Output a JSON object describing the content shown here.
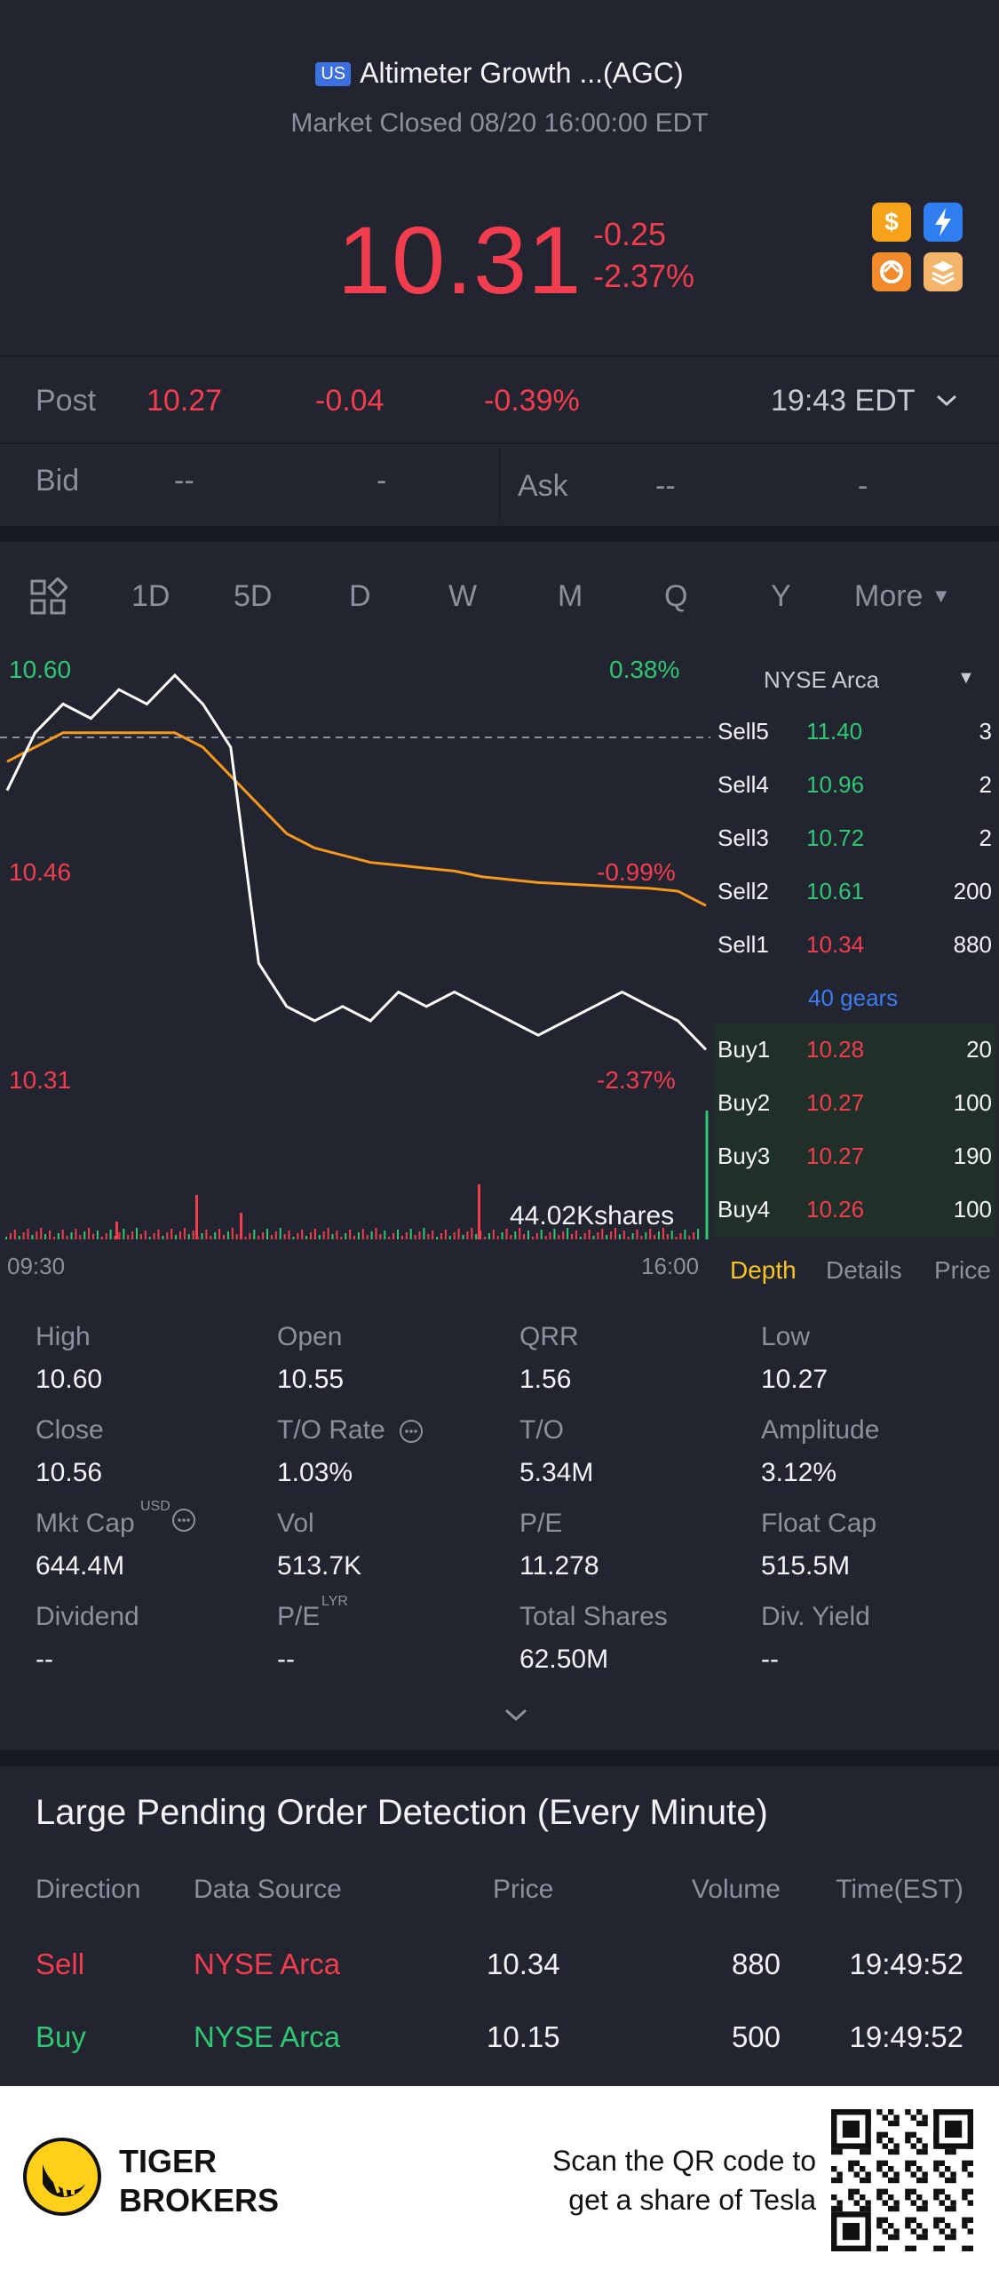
{
  "header": {
    "market_badge": "US",
    "title": "Altimeter Growth ...(AGC)",
    "status": "Market Closed 08/20 16:00:00 EDT",
    "price": "10.31",
    "change": "-0.25",
    "change_pct": "-2.37%",
    "icons": [
      "dollar-icon",
      "lightning-icon",
      "swap-icon",
      "layers-icon"
    ]
  },
  "post": {
    "label": "Post",
    "price": "10.27",
    "change": "-0.04",
    "change_pct": "-0.39%",
    "time": "19:43 EDT"
  },
  "bidask": {
    "bid_label": "Bid",
    "bid_price": "--",
    "bid_size": "-",
    "ask_label": "Ask",
    "ask_price": "--",
    "ask_size": "-"
  },
  "periods": [
    "1D",
    "5D",
    "D",
    "W",
    "M",
    "Q",
    "Y",
    "More"
  ],
  "active_period": "1D",
  "chart": {
    "high_label": "10.60",
    "high_pct": "0.38%",
    "mid_label": "10.46",
    "mid_pct": "-0.99%",
    "low_label": "10.31",
    "low_pct": "-2.37%",
    "volume_label": "44.02Kshares",
    "time_start": "09:30",
    "time_end": "16:00"
  },
  "chart_data": {
    "type": "line",
    "x_range": [
      "09:30",
      "16:00"
    ],
    "ylim": [
      10.31,
      10.6
    ],
    "series": [
      {
        "values": [
          10.52,
          10.56,
          10.58,
          10.57,
          10.59,
          10.58,
          10.6,
          10.58,
          10.55,
          10.4,
          10.37,
          10.36,
          10.37,
          10.36,
          10.38,
          10.37,
          10.38,
          10.37,
          10.36,
          10.35,
          10.36,
          10.37,
          10.38,
          10.37,
          10.36,
          10.34
        ]
      },
      {
        "values": [
          10.54,
          10.55,
          10.56,
          10.56,
          10.56,
          10.56,
          10.56,
          10.55,
          10.53,
          10.51,
          10.49,
          10.48,
          10.475,
          10.47,
          10.468,
          10.466,
          10.464,
          10.46,
          10.458,
          10.456,
          10.455,
          10.454,
          10.453,
          10.452,
          10.45,
          10.44
        ]
      }
    ]
  },
  "orderbook": {
    "exchange": "NYSE Arca",
    "sells": [
      {
        "label": "Sell5",
        "price": "11.40",
        "size": "3"
      },
      {
        "label": "Sell4",
        "price": "10.96",
        "size": "2"
      },
      {
        "label": "Sell3",
        "price": "10.72",
        "size": "2"
      },
      {
        "label": "Sell2",
        "price": "10.61",
        "size": "200"
      },
      {
        "label": "Sell1",
        "price": "10.34",
        "size": "880"
      }
    ],
    "gears": "40 gears",
    "buys": [
      {
        "label": "Buy1",
        "price": "10.28",
        "size": "20"
      },
      {
        "label": "Buy2",
        "price": "10.27",
        "size": "100"
      },
      {
        "label": "Buy3",
        "price": "10.27",
        "size": "190"
      },
      {
        "label": "Buy4",
        "price": "10.26",
        "size": "100"
      }
    ],
    "tabs": [
      "Depth",
      "Details",
      "Price"
    ]
  },
  "stats": [
    {
      "label": "High",
      "value": "10.60"
    },
    {
      "label": "Open",
      "value": "10.55"
    },
    {
      "label": "QRR",
      "value": "1.56"
    },
    {
      "label": "Low",
      "value": "10.27"
    },
    {
      "label": "Close",
      "value": "10.56"
    },
    {
      "label": "T/O Rate",
      "value": "1.03%"
    },
    {
      "label": "T/O",
      "value": "5.34M"
    },
    {
      "label": "Amplitude",
      "value": "3.12%"
    },
    {
      "label": "Mkt Cap",
      "value": "644.4M"
    },
    {
      "label": "Vol",
      "value": "513.7K"
    },
    {
      "label": "P/E",
      "value": "11.278"
    },
    {
      "label": "Float Cap",
      "value": "515.5M"
    },
    {
      "label": "Dividend",
      "value": "--"
    },
    {
      "label": "P/E",
      "value": "--"
    },
    {
      "label": "Total Shares",
      "value": "62.50M"
    },
    {
      "label": "Div. Yield",
      "value": "--"
    }
  ],
  "stats_sup": {
    "mkt_cap": "USD",
    "pe_lyr": "LYR"
  },
  "lpod": {
    "title": "Large Pending Order Detection (Every Minute)",
    "headers": [
      "Direction",
      "Data Source",
      "Price",
      "Volume",
      "Time(EST)"
    ],
    "rows": [
      {
        "direction": "Sell",
        "source": "NYSE Arca",
        "price": "10.34",
        "volume": "880",
        "time": "19:49:52"
      },
      {
        "direction": "Buy",
        "source": "NYSE Arca",
        "price": "10.15",
        "volume": "500",
        "time": "19:49:52"
      }
    ]
  },
  "footer": {
    "brand_line1": "TIGER",
    "brand_line2": "BROKERS",
    "promo_line1": "Scan the QR code to",
    "promo_line2": "get a share of Tesla"
  }
}
